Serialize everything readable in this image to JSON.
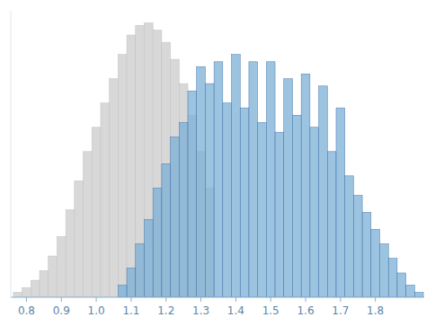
{
  "chart_data": {
    "type": "histogram",
    "series": [
      {
        "color": "#d8d8d8",
        "bins": [
          0.7625,
          0.7875,
          0.8125,
          0.8375,
          0.8625,
          0.8875,
          0.9125,
          0.9375,
          0.9625,
          0.9875,
          1.0125,
          1.0375,
          1.0625,
          1.0875,
          1.1125,
          1.1375,
          1.1625,
          1.1875,
          1.2125,
          1.2375,
          1.2625,
          1.2875,
          1.3125,
          1.3375
        ],
        "values": [
          2,
          4,
          7,
          11,
          17,
          25,
          36,
          48,
          60,
          70,
          80,
          90,
          100,
          108,
          112,
          113,
          110,
          105,
          98,
          88,
          75,
          60,
          45
        ]
      },
      {
        "color": "#7bafd4",
        "bins": [
          1.0625,
          1.0875,
          1.1125,
          1.1375,
          1.1625,
          1.1875,
          1.2125,
          1.2375,
          1.2625,
          1.2875,
          1.3125,
          1.3375,
          1.3625,
          1.3875,
          1.4125,
          1.4375,
          1.4625,
          1.4875,
          1.5125,
          1.5375,
          1.5625,
          1.5875,
          1.6125,
          1.6375,
          1.6625,
          1.6875,
          1.7125,
          1.7375,
          1.7625,
          1.7875,
          1.8125,
          1.8375,
          1.8625,
          1.8875,
          1.9125,
          1.9375
        ],
        "values": [
          5,
          12,
          22,
          32,
          45,
          55,
          66,
          72,
          85,
          95,
          88,
          97,
          80,
          100,
          78,
          97,
          72,
          97,
          68,
          90,
          75,
          92,
          70,
          87,
          60,
          78,
          50,
          42,
          35,
          28,
          22,
          16,
          10,
          5,
          2
        ]
      }
    ],
    "xlim": [
      0.755,
      1.94
    ],
    "ylim": [
      0,
      118
    ],
    "xticks": [
      0.8,
      0.9,
      {
        "value": 1.0,
        "label": "1.0"
      },
      1.1,
      1.2,
      1.3,
      1.4,
      1.5,
      1.6,
      1.7,
      1.8
    ],
    "grid": false,
    "tick_labels": "x"
  }
}
